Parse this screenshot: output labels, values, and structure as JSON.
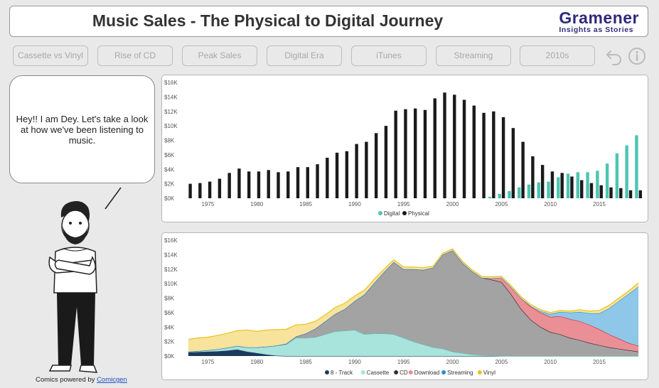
{
  "header": {
    "title": "Music Sales - The Physical to Digital Journey",
    "brand_name": "Gramener",
    "brand_tagline": "Insights as Stories"
  },
  "nav": {
    "buttons": [
      "Cassette vs Vinyl",
      "Rise of CD",
      "Peak Sales",
      "Digital Era",
      "iTunes",
      "Streaming",
      "2010s"
    ]
  },
  "controls": {
    "back_icon": "undo-arrow-icon",
    "info_icon": "info-icon"
  },
  "speech": {
    "text": "Hey!! I am Dey. Let's take a look at how we've been listening to music."
  },
  "credit": {
    "prefix": "Comics powered by ",
    "link": "Comicgen"
  },
  "colors": {
    "digital": "#4dc5b2",
    "physical": "#1a1a1a",
    "eight_track": "#1c3a5e",
    "cassette": "#a8e3dc",
    "cd": "#a3a3a3",
    "download": "#ea8f96",
    "streaming": "#8ec7e8",
    "vinyl": "#f7e39b"
  },
  "chart_data": [
    {
      "type": "bar",
      "x": [
        1973,
        1974,
        1975,
        1976,
        1977,
        1978,
        1979,
        1980,
        1981,
        1982,
        1983,
        1984,
        1985,
        1986,
        1987,
        1988,
        1989,
        1990,
        1991,
        1992,
        1993,
        1994,
        1995,
        1996,
        1997,
        1998,
        1999,
        2000,
        2001,
        2002,
        2003,
        2004,
        2005,
        2006,
        2007,
        2008,
        2009,
        2010,
        2011,
        2012,
        2013,
        2014,
        2015,
        2016,
        2017,
        2018,
        2019
      ],
      "series": [
        {
          "name": "Digital",
          "values": [
            0,
            0,
            0,
            0,
            0,
            0,
            0,
            0,
            0,
            0,
            0,
            0,
            0,
            0,
            0,
            0,
            0,
            0,
            0,
            0,
            0,
            0,
            0,
            0,
            0,
            0,
            0,
            0,
            0,
            0,
            0,
            0.2,
            0.6,
            1.0,
            1.5,
            1.9,
            2.2,
            2.3,
            2.9,
            3.4,
            3.6,
            3.6,
            3.8,
            4.8,
            6.2,
            7.3,
            8.7
          ]
        },
        {
          "name": "Physical",
          "values": [
            2.0,
            2.1,
            2.3,
            2.7,
            3.5,
            4.1,
            3.7,
            3.7,
            3.9,
            3.6,
            3.7,
            4.3,
            4.3,
            4.7,
            5.6,
            6.3,
            6.5,
            7.5,
            7.8,
            9.0,
            10.0,
            12.1,
            12.3,
            12.4,
            12.2,
            13.8,
            14.6,
            14.3,
            13.6,
            12.8,
            11.8,
            12.0,
            11.2,
            9.7,
            7.8,
            5.8,
            4.6,
            3.7,
            3.5,
            3.0,
            2.5,
            2.1,
            1.8,
            1.5,
            1.4,
            1.1,
            1.1
          ]
        }
      ],
      "xticks": [
        1975,
        1980,
        1985,
        1990,
        1995,
        2000,
        2005,
        2010,
        2015
      ],
      "yticks": [
        "$0K",
        "$2K",
        "$4K",
        "$6K",
        "$8K",
        "$10K",
        "$12K",
        "$14K",
        "$16K"
      ],
      "ylim": [
        0,
        16
      ],
      "legend": "bottom"
    },
    {
      "type": "area",
      "x": [
        1973,
        1974,
        1975,
        1976,
        1977,
        1978,
        1979,
        1980,
        1981,
        1982,
        1983,
        1984,
        1985,
        1986,
        1987,
        1988,
        1989,
        1990,
        1991,
        1992,
        1993,
        1994,
        1995,
        1996,
        1997,
        1998,
        1999,
        2000,
        2001,
        2002,
        2003,
        2004,
        2005,
        2006,
        2007,
        2008,
        2009,
        2010,
        2011,
        2012,
        2013,
        2014,
        2015,
        2016,
        2017,
        2018,
        2019
      ],
      "series": [
        {
          "name": "8 - Track",
          "values": [
            0.5,
            0.55,
            0.6,
            0.65,
            0.75,
            0.9,
            0.6,
            0.4,
            0.2,
            0.05,
            0,
            0,
            0,
            0,
            0,
            0,
            0,
            0,
            0,
            0,
            0,
            0,
            0,
            0,
            0,
            0,
            0,
            0,
            0,
            0,
            0,
            0,
            0,
            0,
            0,
            0,
            0,
            0,
            0,
            0,
            0,
            0,
            0,
            0,
            0,
            0,
            0
          ]
        },
        {
          "name": "Cassette",
          "values": [
            0.1,
            0.15,
            0.2,
            0.3,
            0.4,
            0.5,
            0.6,
            0.8,
            1.1,
            1.4,
            1.6,
            2.5,
            2.5,
            2.6,
            3.0,
            3.4,
            3.5,
            3.6,
            3.0,
            3.1,
            3.1,
            3.0,
            2.5,
            2.0,
            1.6,
            1.2,
            1.0,
            0.6,
            0.4,
            0.2,
            0.1,
            0.05,
            0.02,
            0,
            0,
            0,
            0,
            0,
            0,
            0,
            0,
            0,
            0,
            0,
            0,
            0,
            0
          ]
        },
        {
          "name": "CD",
          "values": [
            0,
            0,
            0,
            0,
            0,
            0,
            0,
            0,
            0,
            0,
            0.1,
            0.2,
            0.6,
            1.2,
            1.8,
            2.4,
            3.0,
            4.0,
            5.5,
            7.0,
            8.5,
            10.0,
            9.5,
            10.0,
            10.3,
            11.0,
            13.0,
            14.0,
            12.5,
            11.5,
            10.7,
            10.5,
            10.2,
            8.5,
            6.5,
            5.0,
            4.0,
            3.3,
            3.0,
            2.5,
            2.2,
            1.8,
            1.5,
            1.2,
            1.0,
            0.8,
            0.6
          ]
        },
        {
          "name": "Download",
          "values": [
            0,
            0,
            0,
            0,
            0,
            0,
            0,
            0,
            0,
            0,
            0,
            0,
            0,
            0,
            0,
            0,
            0,
            0,
            0,
            0,
            0,
            0,
            0,
            0,
            0,
            0,
            0,
            0,
            0,
            0,
            0,
            0.2,
            0.6,
            1.0,
            1.5,
            1.8,
            2.0,
            2.1,
            2.5,
            2.6,
            2.6,
            2.5,
            2.2,
            1.8,
            1.4,
            1.0,
            0.8
          ]
        },
        {
          "name": "Streaming",
          "values": [
            0,
            0,
            0,
            0,
            0,
            0,
            0,
            0,
            0,
            0,
            0,
            0,
            0,
            0,
            0,
            0,
            0,
            0,
            0,
            0,
            0,
            0,
            0,
            0,
            0,
            0,
            0,
            0,
            0,
            0,
            0,
            0,
            0,
            0,
            0,
            0.1,
            0.2,
            0.4,
            0.6,
            0.9,
            1.3,
            1.6,
            2.2,
            3.6,
            5.2,
            6.8,
            8.2
          ]
        },
        {
          "name": "Vinyl",
          "values": [
            1.7,
            1.8,
            1.8,
            1.9,
            2.0,
            2.1,
            2.4,
            2.2,
            2.3,
            2.2,
            2.0,
            1.6,
            1.3,
            1.0,
            0.9,
            0.9,
            0.8,
            0.7,
            0.6,
            0.5,
            0.4,
            0.3,
            0.3,
            0.3,
            0.3,
            0.2,
            0.2,
            0.2,
            0.2,
            0.2,
            0.2,
            0.2,
            0.2,
            0.2,
            0.2,
            0.2,
            0.2,
            0.2,
            0.2,
            0.2,
            0.3,
            0.3,
            0.4,
            0.4,
            0.4,
            0.4,
            0.5
          ]
        }
      ],
      "xticks": [
        1975,
        1980,
        1985,
        1990,
        1995,
        2000,
        2005,
        2010,
        2015
      ],
      "yticks": [
        "$0K",
        "$2K",
        "$4K",
        "$6K",
        "$8K",
        "$10K",
        "$12K",
        "$14K",
        "$16K"
      ],
      "ylim": [
        0,
        16
      ],
      "legend": "bottom"
    }
  ]
}
